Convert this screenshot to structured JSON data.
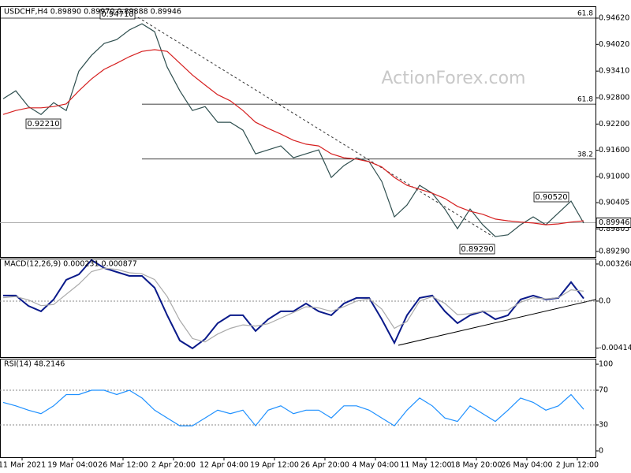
{
  "chart_data": [
    {
      "type": "line",
      "title": "USDCHF,H4  0.89890 0.89970 0.89888 0.89946",
      "watermark": "ActionForex.com",
      "x": [
        0,
        1,
        2,
        3,
        4,
        5,
        6,
        7,
        8,
        9,
        10,
        11,
        12,
        13,
        14,
        15,
        16,
        17,
        18,
        19,
        20,
        21,
        22,
        23,
        24,
        25,
        26,
        27,
        28,
        29,
        30,
        31,
        32,
        33,
        34,
        35,
        36,
        37,
        38,
        39,
        40,
        41,
        42,
        43,
        44,
        45,
        46
      ],
      "xlim": [
        -0.25,
        46.94
      ],
      "ylim": [
        0.89163,
        0.9489
      ],
      "yticks": [
        {
          "value": 0.9462,
          "label": "0.94620"
        },
        {
          "value": 0.9402,
          "label": "0.94020"
        },
        {
          "value": 0.9341,
          "label": "0.93410"
        },
        {
          "value": 0.928,
          "label": "0.92800"
        },
        {
          "value": 0.922,
          "label": "0.92200"
        },
        {
          "value": 0.916,
          "label": "0.91600"
        },
        {
          "value": 0.91,
          "label": "0.91000"
        },
        {
          "value": 0.90405,
          "label": "0.90405"
        },
        {
          "value": 0.89805,
          "label": "0.89805"
        },
        {
          "value": 0.8929,
          "label": "0.89290"
        }
      ],
      "levels": [
        {
          "value": 0.9462,
          "label": "61.8"
        },
        {
          "value": 0.92655,
          "label": "61.8"
        },
        {
          "value": 0.914,
          "label": "38.2"
        }
      ],
      "last_price": {
        "value": 0.89946,
        "label": "0.89946"
      },
      "annotations": [
        "0.94710",
        "0.92210",
        "0.89290",
        "0.90520"
      ],
      "series": [
        {
          "name": "USDCHF",
          "color": "#2f4f4f",
          "values": [
            0.9278,
            0.9296,
            0.926,
            0.9242,
            0.9269,
            0.9251,
            0.9341,
            0.9377,
            0.9404,
            0.9413,
            0.9435,
            0.9449,
            0.9431,
            0.935,
            0.9296,
            0.9251,
            0.926,
            0.9224,
            0.9224,
            0.9206,
            0.9152,
            0.9161,
            0.917,
            0.9143,
            0.9152,
            0.9161,
            0.9098,
            0.9125,
            0.9143,
            0.9134,
            0.9089,
            0.9008,
            0.9035,
            0.908,
            0.9062,
            0.9026,
            0.8981,
            0.9026,
            0.899,
            0.8963,
            0.8967,
            0.899,
            0.9008,
            0.899,
            0.9017,
            0.9044,
            0.8994
          ]
        },
        {
          "name": "MA",
          "color": "#d62020",
          "values": [
            0.9242,
            0.9251,
            0.9257,
            0.9257,
            0.926,
            0.9266,
            0.9296,
            0.9323,
            0.9345,
            0.9359,
            0.9374,
            0.9386,
            0.939,
            0.9386,
            0.9359,
            0.9332,
            0.9309,
            0.9287,
            0.9273,
            0.9251,
            0.9224,
            0.921,
            0.9197,
            0.9183,
            0.9174,
            0.917,
            0.9152,
            0.9143,
            0.914,
            0.9134,
            0.9122,
            0.9098,
            0.908,
            0.9071,
            0.9062,
            0.905,
            0.9032,
            0.9021,
            0.9014,
            0.9003,
            0.8999,
            0.8996,
            0.8994,
            0.899,
            0.8992,
            0.8996,
            0.8999
          ]
        }
      ]
    },
    {
      "type": "line",
      "title": "MACD(12,26,9) 0.000231 0.000877",
      "x": [
        0,
        1,
        2,
        3,
        4,
        5,
        6,
        7,
        8,
        9,
        10,
        11,
        12,
        13,
        14,
        15,
        16,
        17,
        18,
        19,
        20,
        21,
        22,
        23,
        24,
        25,
        26,
        27,
        28,
        29,
        30,
        31,
        32,
        33,
        34,
        35,
        36,
        37,
        38,
        39,
        40,
        41,
        42,
        43,
        44,
        45,
        46
      ],
      "xlim": [
        -0.25,
        46.94
      ],
      "ylim": [
        -0.00494,
        0.00375
      ],
      "yticks": [
        0.003268,
        {
          "value": 0,
          "label": "0.0"
        },
        -0.004144
      ],
      "levels": [
        0
      ],
      "series": [
        {
          "name": "MACD",
          "color": "#0a1a8a",
          "values": [
            0.00049,
            0.00049,
            -0.00042,
            -0.0009,
            0.00014,
            0.00188,
            0.00236,
            0.00362,
            0.00292,
            0.00257,
            0.00222,
            0.00222,
            0.00118,
            -0.00125,
            -0.00348,
            -0.00417,
            -0.00334,
            -0.00195,
            -0.00125,
            -0.00125,
            -0.00264,
            -0.0016,
            -0.0009,
            -0.0009,
            -0.00021,
            -0.0009,
            -0.00125,
            -0.00021,
            0.00028,
            0.00028,
            -0.0016,
            -0.00369,
            -0.00125,
            0.00028,
            0.00049,
            -0.0009,
            -0.00195,
            -0.00125,
            -0.0009,
            -0.0016,
            -0.00125,
            0.00014,
            0.00049,
            0.00014,
            0.00028,
            0.00167,
            0.000231
          ]
        },
        {
          "name": "Signal",
          "color": "#aaaaaa",
          "values": [
            0.0003,
            0.0004,
            0.0001,
            -0.0004,
            -0.0003,
            0.0006,
            0.0015,
            0.0026,
            0.0029,
            0.0028,
            0.0025,
            0.0024,
            0.0019,
            0.0004,
            -0.0017,
            -0.0033,
            -0.0036,
            -0.0029,
            -0.0024,
            -0.0021,
            -0.0022,
            -0.002,
            -0.0015,
            -0.001,
            -0.0005,
            -0.0006,
            -0.0009,
            -0.0005,
            0,
            0.0002,
            -0.0007,
            -0.0024,
            -0.0018,
            0,
            0.0004,
            -0.0002,
            -0.0012,
            -0.0011,
            -0.0009,
            -0.0009,
            -0.0008,
            -0.0001,
            0.0003,
            0.0002,
            0.0003,
            0.001,
            0.000877
          ]
        }
      ]
    },
    {
      "type": "line",
      "title": "RSI(14) 48.2146",
      "x": [
        0,
        1,
        2,
        3,
        4,
        5,
        6,
        7,
        8,
        9,
        10,
        11,
        12,
        13,
        14,
        15,
        16,
        17,
        18,
        19,
        20,
        21,
        22,
        23,
        24,
        25,
        26,
        27,
        28,
        29,
        30,
        31,
        32,
        33,
        34,
        35,
        36,
        37,
        38,
        39,
        40,
        41,
        42,
        43,
        44,
        45,
        46
      ],
      "xlim": [
        -0.25,
        46.94
      ],
      "ylim": [
        -7.3,
        106.4
      ],
      "yticks": [
        100,
        70,
        30,
        0
      ],
      "levels": [
        70,
        30
      ],
      "xticks": [
        {
          "value": 1.5,
          "label": "11 Mar 2021"
        },
        {
          "value": 5.5,
          "label": "19 Mar 04:00"
        },
        {
          "value": 9.5,
          "label": "26 Mar 12:00"
        },
        {
          "value": 13.5,
          "label": "2 Apr 20:00"
        },
        {
          "value": 17.5,
          "label": "12 Apr 04:00"
        },
        {
          "value": 21.5,
          "label": "19 Apr 12:00"
        },
        {
          "value": 25.5,
          "label": "26 Apr 20:00"
        },
        {
          "value": 29.5,
          "label": "4 May 04:00"
        },
        {
          "value": 33.5,
          "label": "11 May 12:00"
        },
        {
          "value": 37.5,
          "label": "18 May 20:00"
        },
        {
          "value": 41.5,
          "label": "26 May 04:00"
        },
        {
          "value": 45.5,
          "label": "2 Jun 12:00"
        }
      ],
      "series": [
        {
          "name": "RSI",
          "color": "#1e90ff",
          "values": [
            56,
            52,
            47,
            43,
            52,
            65,
            65,
            70,
            70,
            65,
            70,
            61,
            47,
            38,
            29,
            29,
            38,
            47,
            43,
            47,
            29,
            47,
            52,
            43,
            47,
            47,
            38,
            52,
            52,
            47,
            38,
            29,
            47,
            61,
            52,
            38,
            34,
            52,
            43,
            34,
            47,
            61,
            56,
            47,
            52,
            65,
            48
          ]
        }
      ]
    }
  ]
}
